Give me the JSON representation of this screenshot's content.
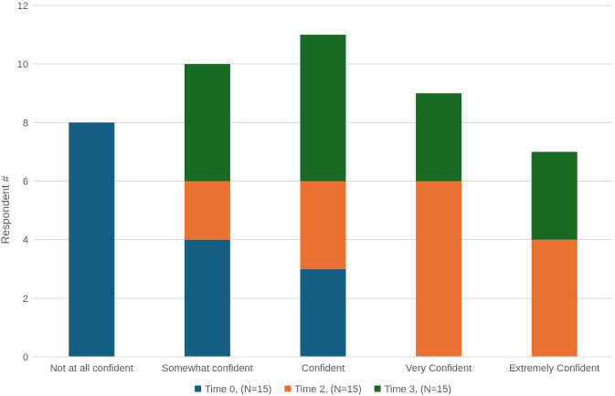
{
  "chart_data": {
    "type": "bar",
    "stacked": true,
    "categories": [
      "Not at all confident",
      "Somewhat confident",
      "Confident",
      "Very Confident",
      "Extremely Confident"
    ],
    "series": [
      {
        "name": "Time 0,  (N=15)",
        "color": "#156082",
        "values": [
          8,
          4,
          3,
          0,
          0
        ]
      },
      {
        "name": "Time 2,  (N=15)",
        "color": "#E97132",
        "values": [
          0,
          2,
          3,
          6,
          4
        ]
      },
      {
        "name": "Time 3,  (N=15)",
        "color": "#196B24",
        "values": [
          0,
          4,
          5,
          3,
          3
        ]
      }
    ],
    "xlabel": "",
    "ylabel": "Respondent #",
    "ylim": [
      0,
      12
    ],
    "yticks": [
      0,
      2,
      4,
      6,
      8,
      10,
      12
    ],
    "grid": true,
    "legend_position": "bottom"
  }
}
